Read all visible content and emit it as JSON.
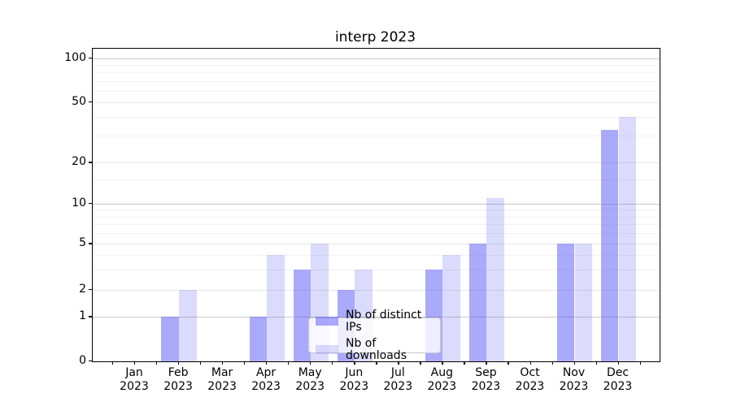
{
  "chart_data": {
    "type": "bar",
    "title": "interp 2023",
    "categories": [
      "Jan",
      "Feb",
      "Mar",
      "Apr",
      "May",
      "Jun",
      "Jul",
      "Aug",
      "Sep",
      "Oct",
      "Nov",
      "Dec"
    ],
    "year_label": "2023",
    "series": [
      {
        "name": "Nb of distinct IPs",
        "color": "rgba(85,85,245,0.5)",
        "values": [
          0,
          1,
          0,
          1,
          3,
          2,
          0,
          3,
          5,
          0,
          5,
          33
        ]
      },
      {
        "name": "Nb of downloads",
        "color": "rgba(85,85,245,0.21)",
        "values": [
          0,
          2,
          0,
          4,
          5,
          3,
          0,
          4,
          11,
          0,
          5,
          40
        ]
      }
    ],
    "y_axis": {
      "tick_values": [
        0,
        1,
        2,
        5,
        10,
        20,
        50,
        100
      ],
      "minor_tick_values": [
        3,
        4,
        6,
        7,
        8,
        9,
        15,
        30,
        40,
        60,
        70,
        80,
        90
      ],
      "scale": "symlog-like",
      "ylim": [
        0,
        100
      ]
    },
    "x_axis": {
      "tick_label_format": "month newline year"
    },
    "legend_position": "lower center",
    "grid": true,
    "colors": {
      "bar_dark": "#aaaaf9",
      "bar_light": "#dbdbfa",
      "grid_major": "#c9c9c9",
      "grid_minor": "#f2f2f2",
      "axis": "#000000"
    }
  }
}
